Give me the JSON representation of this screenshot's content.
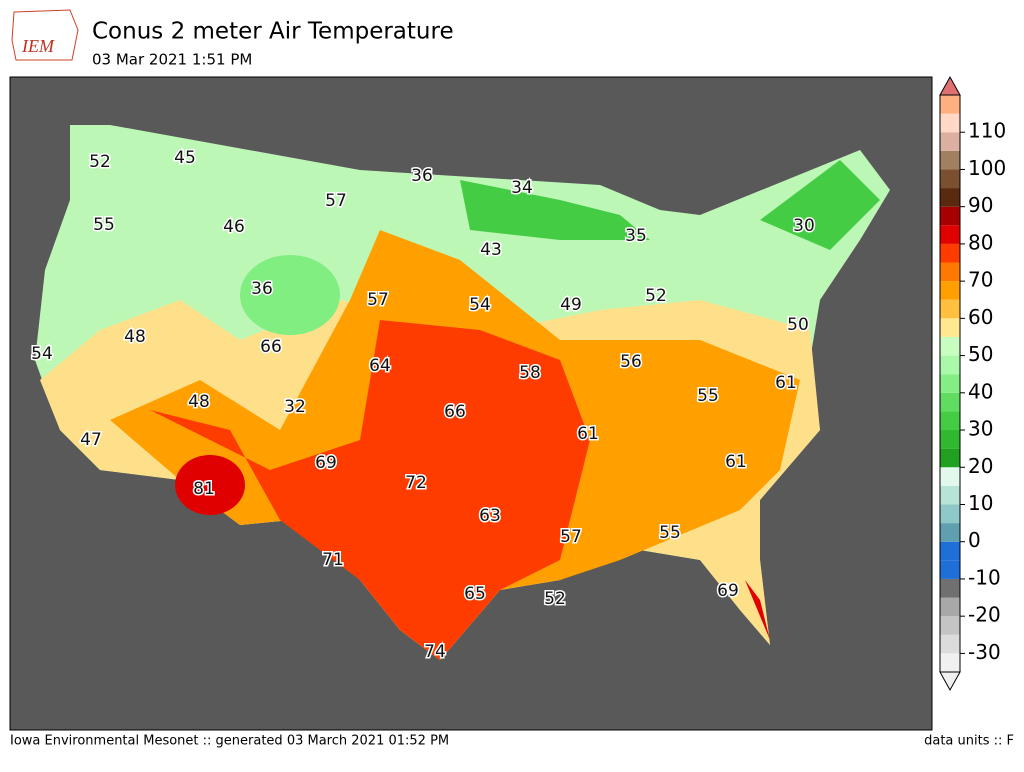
{
  "header": {
    "logo": "IEM",
    "title": "Conus 2 meter Air Temperature",
    "subtitle": "03 Mar 2021 1:51 PM"
  },
  "map": {
    "labels": [
      52,
      45,
      36,
      34,
      57,
      55,
      46,
      43,
      35,
      30,
      36,
      57,
      54,
      49,
      52,
      50,
      48,
      54,
      66,
      64,
      58,
      56,
      61,
      48,
      32,
      66,
      55,
      47,
      61,
      61,
      69,
      72,
      63,
      81,
      57,
      55,
      71,
      65,
      52,
      69,
      74
    ]
  },
  "colorbar": {
    "lim": [
      -35,
      120
    ],
    "bounds": [
      -35,
      -30,
      -25,
      -20,
      -15,
      -10,
      -5,
      0,
      5,
      10,
      15,
      20,
      25,
      30,
      35,
      40,
      45,
      50,
      55,
      60,
      65,
      70,
      75,
      80,
      85,
      90,
      95,
      100,
      105,
      110,
      115,
      120
    ],
    "colors": [
      "#f0f0f0",
      "#dcdcdc",
      "#c4c4c4",
      "#a8a8a8",
      "#707070",
      "#1f6fd8",
      "#1f6fd8",
      "#5f9fb0",
      "#8fc8c8",
      "#b8e4d8",
      "#e2f8ec",
      "#22a022",
      "#30b830",
      "#44cc44",
      "#60dd60",
      "#84ee84",
      "#aaf8aa",
      "#c8ffc0",
      "#ffe890",
      "#ffc040",
      "#ffa000",
      "#ff7800",
      "#ff3c00",
      "#e00000",
      "#a80000",
      "#5a2a10",
      "#7a5030",
      "#a08060",
      "#dcb0a0",
      "#ffd8c8",
      "#ffb080",
      "#e07070"
    ],
    "ticks": [
      -30,
      -20,
      -10,
      0,
      10,
      20,
      30,
      40,
      50,
      60,
      70,
      80,
      90,
      100,
      110
    ]
  },
  "footer": {
    "left": "Iowa Environmental Mesonet :: generated 03 March 2021 01:52 PM",
    "right": "data units :: F"
  }
}
